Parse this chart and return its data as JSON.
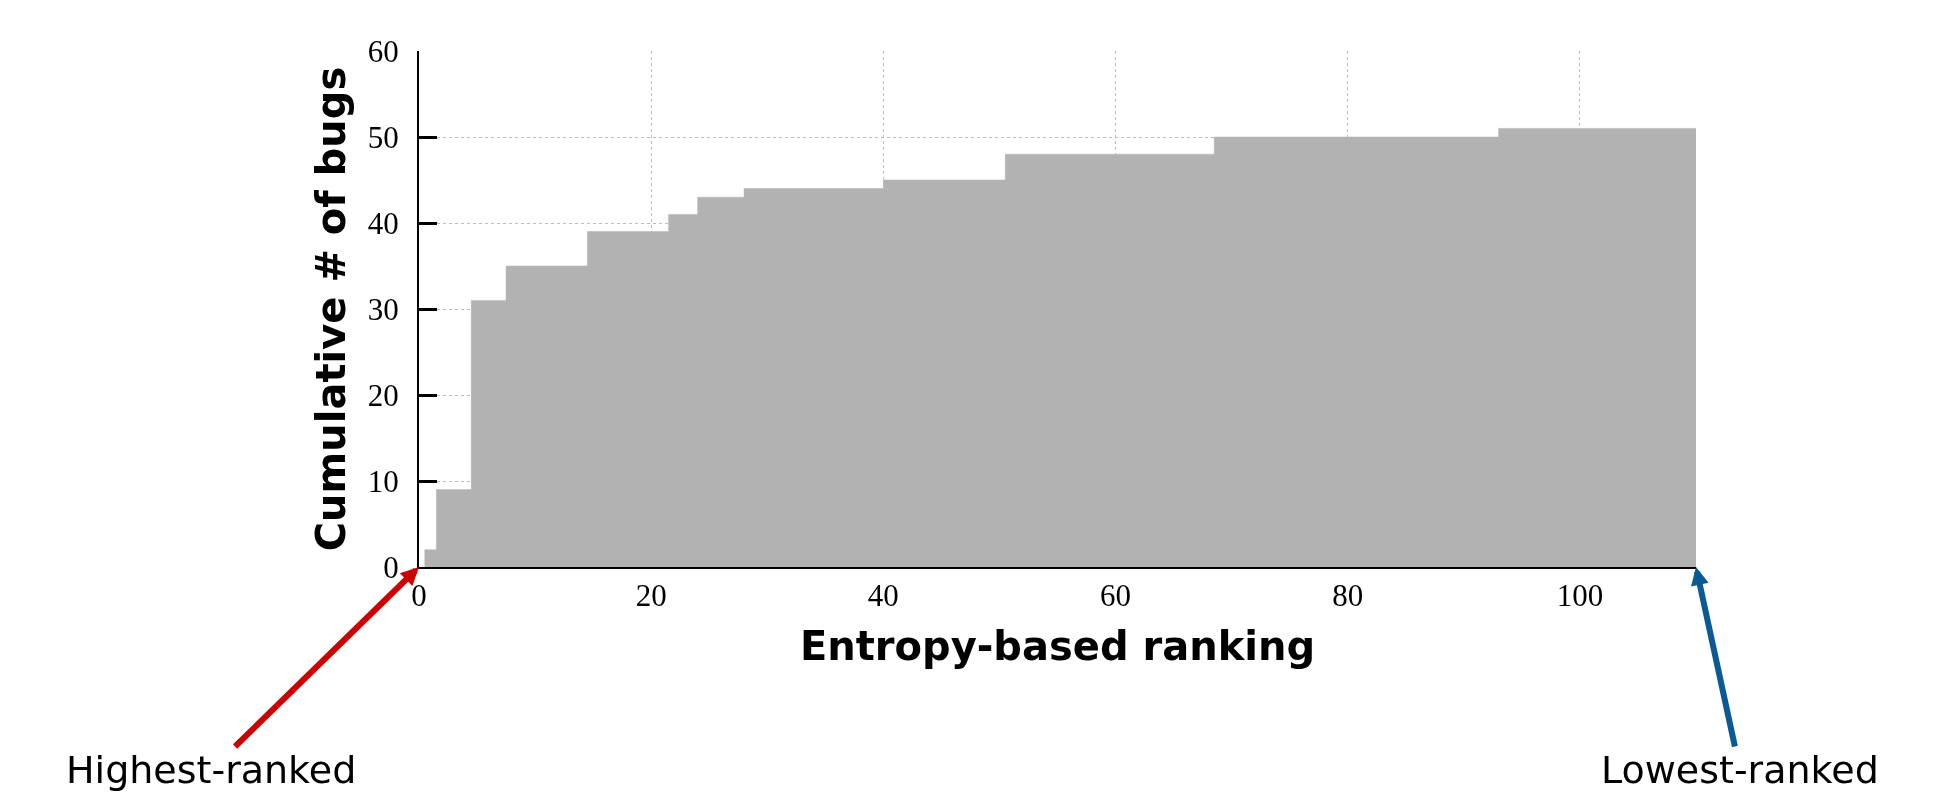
{
  "chart_data": {
    "type": "area",
    "xlabel": "Entropy-based ranking",
    "ylabel": "Cumulative # of bugs",
    "x": [
      0.5,
      0.5,
      1.5,
      1.5,
      4.5,
      4.5,
      7.5,
      7.5,
      14.5,
      14.5,
      21.5,
      21.5,
      24,
      24,
      28,
      28,
      40,
      40,
      50.5,
      50.5,
      68.5,
      68.5,
      93,
      93,
      110,
      110
    ],
    "values": [
      0,
      2,
      2,
      9,
      9,
      31,
      31,
      35,
      35,
      39,
      39,
      41,
      41,
      43,
      43,
      44,
      44,
      45,
      45,
      48,
      48,
      50,
      50,
      51,
      51,
      0
    ],
    "color": "#b2b2b2",
    "xlim": [
      0,
      110
    ],
    "xticks": [
      0,
      20,
      40,
      60,
      80,
      100
    ],
    "ylim": [
      0,
      60
    ],
    "yticks": [
      0,
      10,
      20,
      30,
      40,
      50,
      60
    ],
    "grid": true,
    "annotations": [
      "Highest-ranked",
      {
        "text": "Lowest-ranked",
        "x": 110,
        "y": 0
      }
    ]
  }
}
